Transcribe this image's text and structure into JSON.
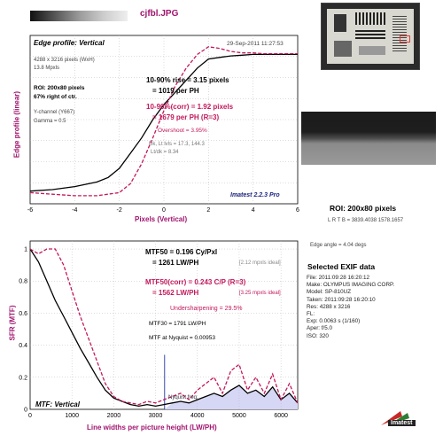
{
  "header": {
    "filename": "cjfbl.JPG",
    "datetime": "29-Sep-2011 11:27:53"
  },
  "colors": {
    "black_curve": "#000000",
    "corr_curve": "#c2185b",
    "title_blue": "#1a237e",
    "fill_blue": "#d6d6f5"
  },
  "edge": {
    "title": "Edge profile: Vertical",
    "size": "4288 x 3216 pixels (WxH)",
    "mpxls": "13.8 Mpxls",
    "roi": "ROI: 200x80 pixels",
    "pos": "67% right of ctr.",
    "channel": "Y-channel  (Y667)",
    "gamma": "Gamma = 0.5",
    "rise": "10-90% rise = 3.15 pixels",
    "perph": "= 1019 per PH",
    "rise_corr": "10-90%(corr) = 1.92 pixels",
    "perph_corr": "= 1679 per PH  (R=3)",
    "overshoot": "Overshoot = 3.95%",
    "dk": "Dk, Lt lvls = 17.3, 144.3",
    "ltdk": "Lt/dk = 8.34",
    "version": "Imatest 2.2.3 Pro",
    "ylabel": "Edge profile (linear)",
    "xlabel": "Pixels (Vertical)"
  },
  "edge_chart": {
    "type": "line",
    "xlim": [
      -6,
      6
    ],
    "xticks": [
      "-6",
      "-4",
      "-2",
      "0",
      "2",
      "4",
      "6"
    ],
    "series": [
      {
        "x": [
          -6,
          -5,
          -4,
          -3,
          -2.5,
          -2,
          -1.5,
          -1,
          -0.5,
          0,
          0.5,
          1,
          1.5,
          2,
          2.5,
          3,
          3.5,
          4,
          4.5,
          5,
          5.5,
          6
        ],
        "y": [
          0.05,
          0.06,
          0.08,
          0.11,
          0.14,
          0.2,
          0.3,
          0.4,
          0.52,
          0.62,
          0.7,
          0.78,
          0.86,
          0.92,
          0.93,
          0.94,
          0.945,
          0.95,
          0.95,
          0.95,
          0.95,
          0.95
        ]
      },
      {
        "x": [
          -6,
          -5,
          -4,
          -3,
          -2,
          -1.5,
          -1,
          -0.5,
          0,
          0.5,
          1,
          1.5,
          2,
          2.5,
          3,
          3.5,
          4,
          4.5,
          5,
          5.5,
          6
        ],
        "y": [
          0.04,
          0.03,
          0.02,
          0.02,
          0.04,
          0.1,
          0.23,
          0.4,
          0.58,
          0.74,
          0.86,
          0.95,
          1.0,
          0.99,
          0.97,
          0.96,
          0.96,
          0.955,
          0.955,
          0.955,
          0.955
        ]
      }
    ]
  },
  "mtf": {
    "title": "MTF: Vertical",
    "ylabel": "SFR (MTF)",
    "xlabel": "Line widths per picture height (LW/PH)",
    "mtf50": "MTF50 = 0.196 Cy/Pxl",
    "mtf50_lwph": "= 1261 LW/PH",
    "ideal1": "[2.12 mpxls ideal]",
    "mtf50c": "MTF50(corr) = 0.243 C/P   (R=3)",
    "mtf50c_lwph": "= 1562 LW/PH",
    "ideal2": "[3.25 mpxls ideal]",
    "under": "Undersharpening = 29.5%",
    "mtf30": "MTF30 = 1791 LW/PH",
    "nyq": "MTF at Nyquist = 0.00953",
    "nyq_label": "Nyquist freq."
  },
  "mtf_chart": {
    "type": "line",
    "xlim": [
      0,
      6400
    ],
    "ylim": [
      0,
      1.05
    ],
    "xticks": [
      "0",
      "1000",
      "2000",
      "3000",
      "4000",
      "5000",
      "6000"
    ],
    "yticks": [
      "0",
      "0.2",
      "0.4",
      "0.6",
      "0.8",
      "1"
    ],
    "nyquist_x": 3216,
    "series": [
      {
        "x": [
          0,
          200,
          400,
          600,
          800,
          1000,
          1200,
          1400,
          1600,
          1800,
          2000,
          2200,
          2400,
          2600,
          2800,
          3000,
          3200,
          3400,
          3600,
          3800,
          4000,
          4200,
          4400,
          4600,
          4800,
          5000,
          5200,
          5400,
          5600,
          5800,
          6000,
          6200,
          6400
        ],
        "y": [
          1.0,
          0.92,
          0.8,
          0.68,
          0.58,
          0.48,
          0.38,
          0.29,
          0.2,
          0.12,
          0.07,
          0.05,
          0.03,
          0.02,
          0.03,
          0.02,
          0.03,
          0.04,
          0.05,
          0.04,
          0.06,
          0.08,
          0.1,
          0.08,
          0.12,
          0.15,
          0.1,
          0.12,
          0.08,
          0.14,
          0.06,
          0.1,
          0.04
        ]
      },
      {
        "x": [
          0,
          200,
          400,
          600,
          800,
          1000,
          1200,
          1400,
          1600,
          1800,
          2000,
          2200,
          2400,
          2600,
          2800,
          3000,
          3200,
          3400,
          3600,
          3800,
          4000,
          4200,
          4400,
          4600,
          4800,
          5000,
          5200,
          5400,
          5600,
          5800,
          6000,
          6200,
          6400
        ],
        "y": [
          1.0,
          0.97,
          1.0,
          1.0,
          0.9,
          0.74,
          0.58,
          0.44,
          0.3,
          0.16,
          0.08,
          0.05,
          0.04,
          0.03,
          0.05,
          0.04,
          0.06,
          0.08,
          0.1,
          0.06,
          0.12,
          0.16,
          0.2,
          0.1,
          0.24,
          0.28,
          0.12,
          0.2,
          0.1,
          0.22,
          0.06,
          0.16,
          0.04
        ]
      }
    ]
  },
  "roi": {
    "label": "ROI: 200x80 pixels",
    "lrtb": "L R T B = 3839.4038  1578.1657",
    "angle": "Edge angle = 4.04 degs"
  },
  "exif": {
    "title": "Selected EXIF data",
    "lines": [
      "File:  2011:09:28 16:20:12",
      "Make:  OLYMPUS IMAGING CORP.",
      "Model:  SP-810UZ",
      "Taken:  2011:09:28 16:20:10",
      "Res:  4288 x 3216",
      "FL:",
      "Exp:  0.0063 s  (1/160)",
      "Aper:  f/5.0",
      "ISO:  320"
    ]
  },
  "brand": {
    "imatest": "Imatest"
  }
}
